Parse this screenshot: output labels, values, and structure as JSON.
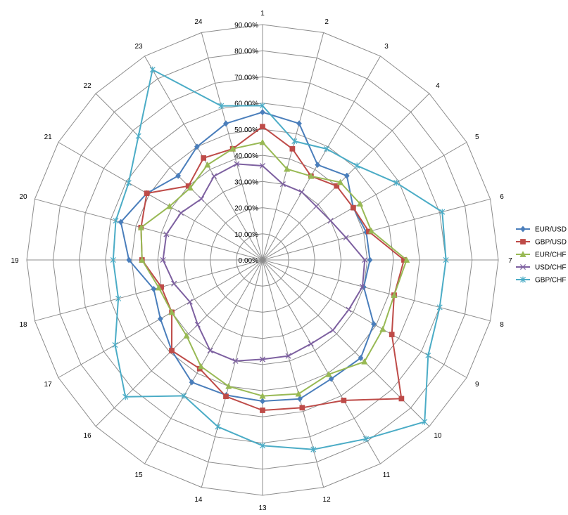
{
  "chart_data": {
    "type": "radar",
    "categories": [
      "1",
      "2",
      "3",
      "4",
      "5",
      "6",
      "7",
      "8",
      "9",
      "10",
      "11",
      "12",
      "13",
      "14",
      "15",
      "16",
      "17",
      "18",
      "19",
      "20",
      "21",
      "22",
      "23",
      "24"
    ],
    "r_ticks": [
      "0.00%",
      "10.00%",
      "20.00%",
      "30.00%",
      "40.00%",
      "50.00%",
      "60.00%",
      "70.00%",
      "80.00%",
      "90.00%"
    ],
    "rlim": [
      0,
      90
    ],
    "grid": true,
    "legend_position": "right",
    "series": [
      {
        "name": "EUR/USD",
        "color": "#4a7ebb",
        "marker": "diamond",
        "values": [
          56.5,
          54.0,
          42.0,
          45.5,
          40.0,
          41.0,
          41.0,
          40.0,
          49.0,
          53.0,
          52.5,
          55.0,
          54.0,
          53.5,
          54.0,
          49.0,
          45.0,
          43.0,
          51.0,
          56.0,
          51.0,
          45.5,
          50.0,
          54.0
        ]
      },
      {
        "name": "GBP/USD",
        "color": "#be4b48",
        "marker": "square",
        "values": [
          51.0,
          44.0,
          37.0,
          40.0,
          40.0,
          42.0,
          54.0,
          52.0,
          57.0,
          75.0,
          62.0,
          58.5,
          57.5,
          54.0,
          48.0,
          49.0,
          40.0,
          40.0,
          46.0,
          48.0,
          51.0,
          40.0,
          45.0,
          44.0
        ]
      },
      {
        "name": "EUR/CHF",
        "color": "#98b954",
        "marker": "triangle",
        "values": [
          45.0,
          36.0,
          37.0,
          42.0,
          43.0,
          43.0,
          55.0,
          52.0,
          53.0,
          55.0,
          50.5,
          53.0,
          52.0,
          50.0,
          47.0,
          41.0,
          40.0,
          41.0,
          46.0,
          48.0,
          41.0,
          39.0,
          42.0,
          44.0
        ]
      },
      {
        "name": "USD/CHF",
        "color": "#7d60a0",
        "marker": "x",
        "values": [
          36.0,
          30.0,
          30.0,
          29.0,
          30.0,
          33.0,
          39.0,
          39.5,
          38.0,
          38.0,
          37.0,
          38.0,
          38.0,
          40.0,
          40.0,
          35.0,
          32.0,
          35.0,
          38.0,
          38.0,
          36.0,
          33.0,
          37.0,
          38.0
        ]
      },
      {
        "name": "GBP/CHF",
        "color": "#4bacc6",
        "marker": "star",
        "values": [
          59.0,
          47.0,
          49.0,
          51.0,
          59.0,
          71.0,
          70.0,
          70.0,
          73.0,
          87.5,
          79.0,
          75.0,
          71.0,
          66.0,
          60.0,
          74.0,
          65.0,
          57.0,
          57.0,
          58.0,
          59.0,
          67.0,
          84.0,
          61.0
        ]
      }
    ]
  }
}
